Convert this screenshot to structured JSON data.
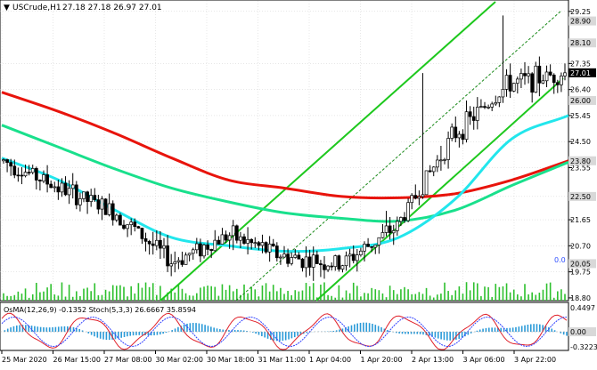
{
  "header": {
    "symbol_label": "USCrude,H1",
    "ohlc": "27.18 27.18 26.97 27.01",
    "indicator_label": "OsMA(12,26,9) -0.1352  Stoch(5,3,3) 26.6667 35.8594"
  },
  "axis": {
    "price_ticks": [
      "29.25",
      "27.35",
      "26.40",
      "25.45",
      "24.50",
      "23.55",
      "22.50",
      "21.65",
      "20.70",
      "19.75",
      "18.80"
    ],
    "price_badges": [
      "28.90",
      "28.10",
      "27.01",
      "26.00",
      "23.80",
      "22.50",
      "20.05"
    ],
    "zero_label": "0.0",
    "indicator_ticks": [
      "0.4497",
      "0.00",
      "-0.3223"
    ],
    "time_ticks": [
      "25 Mar 2020",
      "26 Mar 15:00",
      "27 Mar 08:00",
      "30 Mar 02:00",
      "30 Mar 18:00",
      "31 Mar 11:00",
      "1 Apr 04:00",
      "1 Apr 20:00",
      "2 Apr 13:00",
      "3 Apr 06:00",
      "3 Apr 22:00"
    ]
  },
  "colors": {
    "background": "#ffffff",
    "grid": "#cfcfcf",
    "candles": "#000000",
    "ema_red": "#e8140c",
    "ema_green": "#19e08c",
    "ema_cyan": "#22e6ec",
    "channel": "#1ec81e",
    "badge_bg": "#d8d8d8",
    "current_bg": "#000000",
    "osma": "#2a9ad8",
    "stoch_main": "#e0202a",
    "stoch_signal": "#3040ff",
    "volume": "#2ec02e"
  },
  "chart_data": {
    "type": "candlestick",
    "title": "USCrude,H1",
    "ylim": [
      18.7,
      29.6
    ],
    "current_price": 27.01,
    "series": [
      {
        "name": "close",
        "x": [
          "25 Mar 2020",
          "26 Mar 15:00",
          "27 Mar 08:00",
          "30 Mar 02:00",
          "30 Mar 18:00",
          "31 Mar 11:00",
          "1 Apr 04:00",
          "1 Apr 20:00",
          "2 Apr 13:00",
          "3 Apr 06:00",
          "3 Apr 22:00"
        ],
        "values": [
          23.8,
          22.8,
          21.9,
          20.1,
          21.1,
          20.3,
          20.0,
          21.4,
          24.7,
          26.6,
          27.01
        ]
      },
      {
        "name": "ema_red",
        "values": [
          26.3,
          25.6,
          24.8,
          23.9,
          23.1,
          22.8,
          22.5,
          22.45,
          22.6,
          23.1,
          23.8
        ]
      },
      {
        "name": "ema_green",
        "values": [
          25.1,
          24.3,
          23.5,
          22.8,
          22.3,
          21.9,
          21.7,
          21.6,
          22.0,
          22.9,
          23.75
        ]
      },
      {
        "name": "ema_cyan",
        "values": [
          23.9,
          23.1,
          22.0,
          21.0,
          20.7,
          20.5,
          20.6,
          21.0,
          22.4,
          24.6,
          25.45
        ]
      }
    ]
  }
}
